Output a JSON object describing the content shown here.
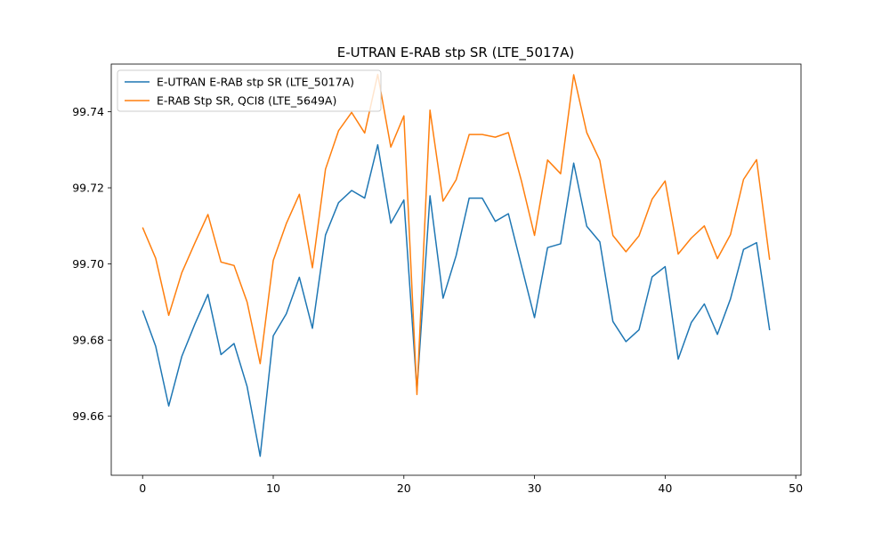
{
  "chart_data": {
    "type": "line",
    "title": "E-UTRAN E-RAB stp SR (LTE_5017A)",
    "xlabel": "",
    "ylabel": "",
    "xlim": [
      -2.4,
      50.4
    ],
    "ylim": [
      99.6445,
      99.7525
    ],
    "xticks": [
      0,
      10,
      20,
      30,
      40,
      50
    ],
    "xtick_labels": [
      "0",
      "10",
      "20",
      "30",
      "40",
      "50"
    ],
    "yticks": [
      99.66,
      99.68,
      99.7,
      99.72,
      99.74
    ],
    "ytick_labels": [
      "99.66",
      "99.68",
      "99.70",
      "99.72",
      "99.74"
    ],
    "grid": false,
    "legend_position": "top-left",
    "x": [
      0,
      1,
      2,
      3,
      4,
      5,
      6,
      7,
      8,
      9,
      10,
      11,
      12,
      13,
      14,
      15,
      16,
      17,
      18,
      19,
      20,
      21,
      22,
      23,
      24,
      25,
      26,
      27,
      28,
      29,
      30,
      31,
      32,
      33,
      34,
      35,
      36,
      37,
      38,
      39,
      40,
      41,
      42,
      43,
      44,
      45,
      46,
      47,
      48
    ],
    "series": [
      {
        "name": "E-UTRAN E-RAB stp SR (LTE_5017A)",
        "color": "#1f77b4",
        "values": [
          99.6878,
          99.6784,
          99.6627,
          99.6757,
          99.6842,
          99.692,
          99.6762,
          99.6791,
          99.6678,
          99.6495,
          99.6811,
          99.6869,
          99.6965,
          99.6831,
          99.7076,
          99.7161,
          99.7193,
          99.7173,
          99.7313,
          99.7107,
          99.7168,
          99.6668,
          99.7179,
          99.691,
          99.7022,
          99.7173,
          99.7173,
          99.7112,
          99.7132,
          99.6995,
          99.6859,
          99.7043,
          99.7053,
          99.7265,
          99.7099,
          99.7058,
          99.6849,
          99.6796,
          99.6827,
          99.6966,
          99.6993,
          99.675,
          99.6846,
          99.6895,
          99.6815,
          99.6908,
          99.7038,
          99.7056,
          99.6826
        ]
      },
      {
        "name": "E-RAB Stp SR, QCI8 (LTE_5649A)",
        "color": "#ff7f0e",
        "values": [
          99.7096,
          99.7015,
          99.6865,
          99.6977,
          99.7055,
          99.713,
          99.7005,
          99.6996,
          99.69,
          99.6738,
          99.7009,
          99.7106,
          99.7183,
          99.699,
          99.7249,
          99.735,
          99.7398,
          99.7344,
          99.7498,
          99.7307,
          99.7389,
          99.6657,
          99.7404,
          99.7165,
          99.7221,
          99.734,
          99.734,
          99.7333,
          99.7345,
          99.7218,
          99.7075,
          99.7273,
          99.7237,
          99.7497,
          99.7345,
          99.7272,
          99.7075,
          99.7032,
          99.7074,
          99.717,
          99.7218,
          99.7026,
          99.7068,
          99.71,
          99.7014,
          99.7077,
          99.7222,
          99.7274,
          99.7011
        ]
      }
    ]
  }
}
